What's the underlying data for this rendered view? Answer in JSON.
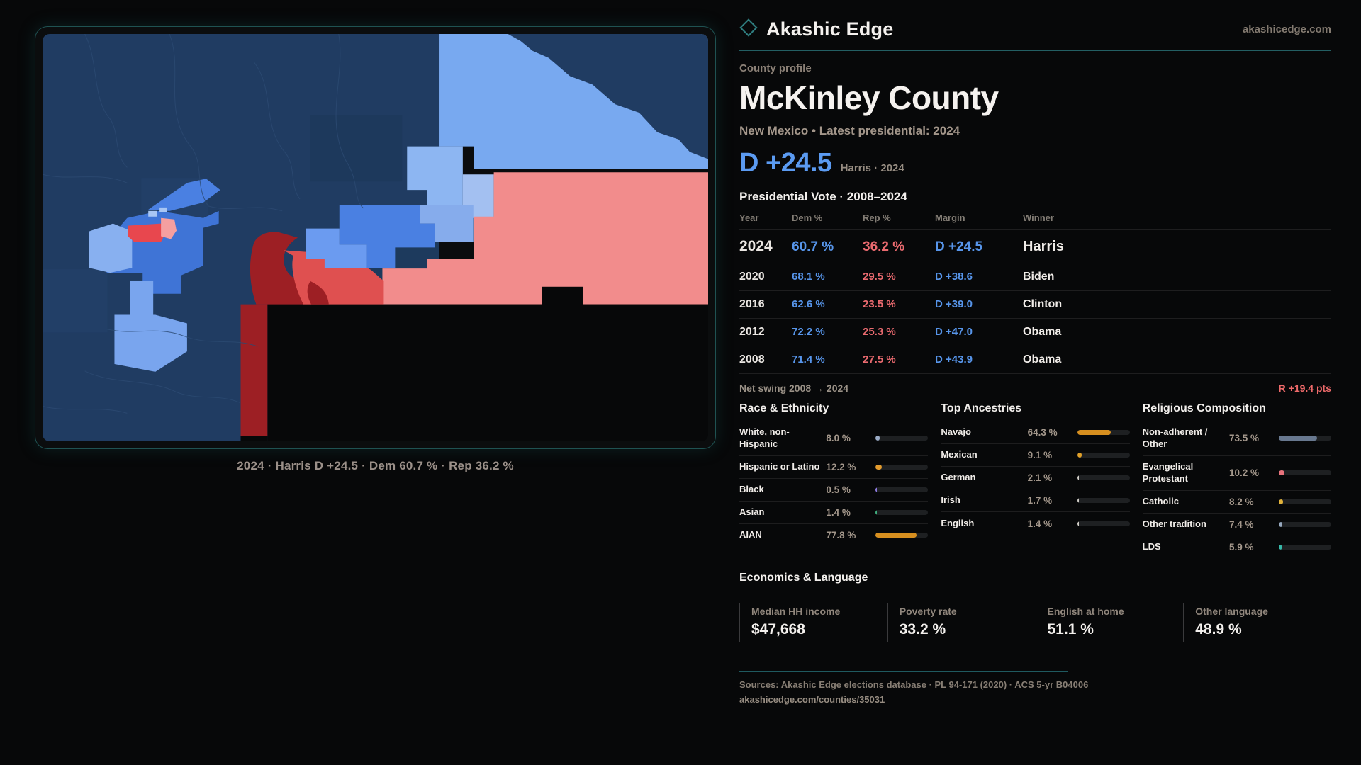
{
  "brand": {
    "name": "Akashic Edge",
    "domain": "akashicedge.com"
  },
  "page": {
    "eyebrow": "County profile",
    "title": "McKinley County",
    "subtitle": "New Mexico • Latest presidential: 2024"
  },
  "hero": {
    "margin": "D +24.5",
    "note": "Harris · 2024"
  },
  "map": {
    "caption": "2024 · Harris D +24.5 · Dem 60.7 % · Rep 36.2 %"
  },
  "table": {
    "title": "Presidential Vote · 2008–2024",
    "headers": {
      "year": "Year",
      "dem": "Dem %",
      "rep": "Rep %",
      "margin": "Margin",
      "winner": "Winner"
    },
    "rows": [
      {
        "year": "2024",
        "dem": "60.7 %",
        "rep": "36.2 %",
        "margin": "D +24.5",
        "winner": "Harris"
      },
      {
        "year": "2020",
        "dem": "68.1 %",
        "rep": "29.5 %",
        "margin": "D +38.6",
        "winner": "Biden"
      },
      {
        "year": "2016",
        "dem": "62.6 %",
        "rep": "23.5 %",
        "margin": "D +39.0",
        "winner": "Clinton"
      },
      {
        "year": "2012",
        "dem": "72.2 %",
        "rep": "25.3 %",
        "margin": "D +47.0",
        "winner": "Obama"
      },
      {
        "year": "2008",
        "dem": "71.4 %",
        "rep": "27.5 %",
        "margin": "D +43.9",
        "winner": "Obama"
      }
    ]
  },
  "swing": {
    "label": "Net swing 2008 → 2024",
    "value": "R +19.4 pts"
  },
  "sections": {
    "race": {
      "title": "Race & Ethnicity",
      "rows": [
        {
          "label": "White, non-Hispanic",
          "value": "8.0 %",
          "pct": 8.0,
          "color": "#9aabc6"
        },
        {
          "label": "Hispanic or Latino",
          "value": "12.2 %",
          "pct": 12.2,
          "color": "#e39b2d"
        },
        {
          "label": "Black",
          "value": "0.5 %",
          "pct": 0.5,
          "color": "#8d7ae0"
        },
        {
          "label": "Asian",
          "value": "1.4 %",
          "pct": 1.4,
          "color": "#3fae7e"
        },
        {
          "label": "AIAN",
          "value": "77.8 %",
          "pct": 77.8,
          "color": "#d78f1f"
        }
      ]
    },
    "ancestry": {
      "title": "Top Ancestries",
      "rows": [
        {
          "label": "Navajo",
          "value": "64.3 %",
          "pct": 64.3,
          "color": "#d78f1f"
        },
        {
          "label": "Mexican",
          "value": "9.1 %",
          "pct": 9.1,
          "color": "#e0a029"
        },
        {
          "label": "German",
          "value": "2.1 %",
          "pct": 2.1,
          "color": "#cfccc6"
        },
        {
          "label": "Irish",
          "value": "1.7 %",
          "pct": 1.7,
          "color": "#cfccc6"
        },
        {
          "label": "English",
          "value": "1.4 %",
          "pct": 1.4,
          "color": "#cfccc6"
        }
      ]
    },
    "religion": {
      "title": "Religious Composition",
      "rows": [
        {
          "label": "Non-adherent / Other",
          "value": "73.5 %",
          "pct": 73.5,
          "color": "#68788f"
        },
        {
          "label": "Evangelical Protestant",
          "value": "10.2 %",
          "pct": 10.2,
          "color": "#e8737c"
        },
        {
          "label": "Catholic",
          "value": "8.2 %",
          "pct": 8.2,
          "color": "#e2b33b"
        },
        {
          "label": "Other tradition",
          "value": "7.4 %",
          "pct": 7.4,
          "color": "#97a9bf"
        },
        {
          "label": "LDS",
          "value": "5.9 %",
          "pct": 5.9,
          "color": "#37b9a9"
        }
      ]
    }
  },
  "economics": {
    "title": "Economics & Language",
    "stats": [
      {
        "label": "Median HH income",
        "value": "$47,668"
      },
      {
        "label": "Poverty rate",
        "value": "33.2 %"
      },
      {
        "label": "English at home",
        "value": "51.1 %"
      },
      {
        "label": "Other language",
        "value": "48.9 %"
      }
    ]
  },
  "footer": {
    "sources": "Sources: Akashic Edge elections database · PL 94-171 (2020) · ACS 5-yr B04006",
    "url": "akashicedge.com/counties/35031"
  }
}
